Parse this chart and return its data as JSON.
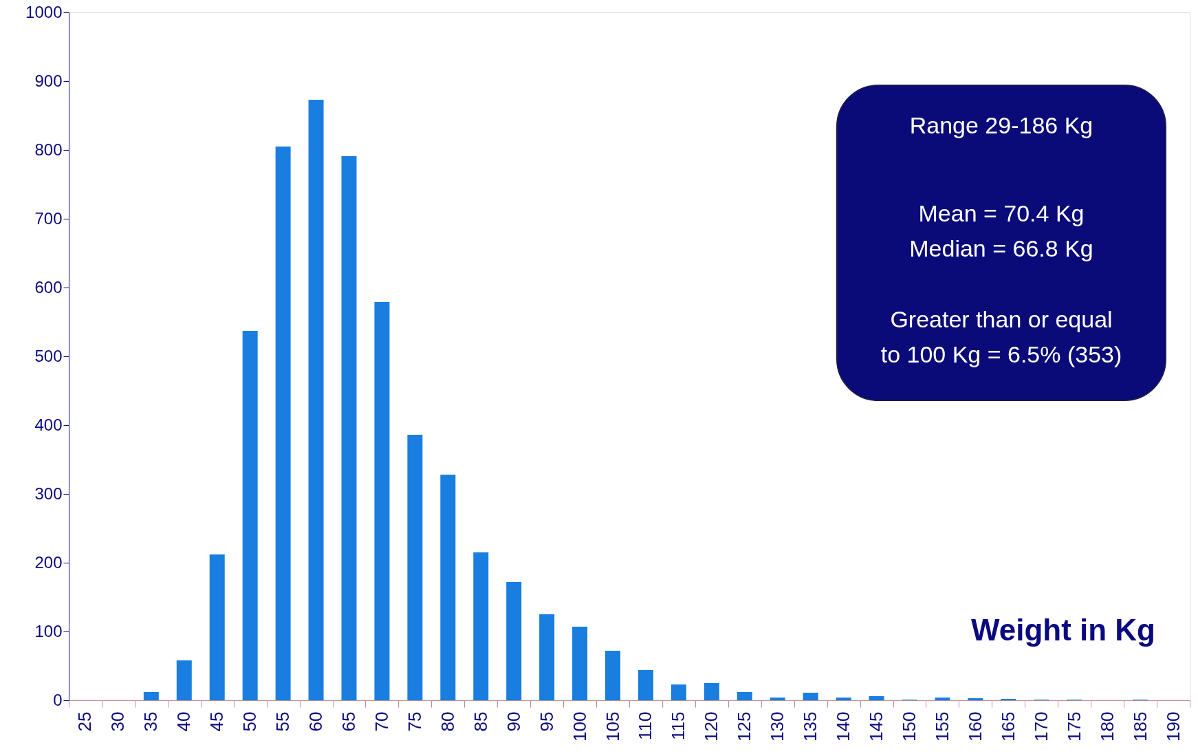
{
  "chart_data": {
    "type": "bar",
    "categories": [
      "25",
      "30",
      "35",
      "40",
      "45",
      "50",
      "55",
      "60",
      "65",
      "70",
      "75",
      "80",
      "85",
      "90",
      "95",
      "100",
      "105",
      "110",
      "115",
      "120",
      "125",
      "130",
      "135",
      "140",
      "145",
      "150",
      "155",
      "160",
      "165",
      "170",
      "175",
      "180",
      "185",
      "190"
    ],
    "values": [
      0,
      0,
      12,
      58,
      212,
      537,
      805,
      873,
      791,
      579,
      386,
      328,
      215,
      172,
      125,
      107,
      72,
      44,
      23,
      25,
      12,
      4,
      11,
      4,
      6,
      1,
      4,
      3,
      2,
      1,
      1,
      0,
      1,
      0
    ],
    "color": "#1a7ee0",
    "ylim": [
      0,
      1000
    ],
    "yticks": [
      0,
      100,
      200,
      300,
      400,
      500,
      600,
      700,
      800,
      900,
      1000
    ],
    "xlabel": "Weight in Kg",
    "annotations": [
      "Range 29-186 Kg",
      "Mean = 70.4 Kg\nMedian = 66.8 Kg",
      "Greater than or equal\nto 100 Kg = 6.5% (353)"
    ],
    "grid": false
  }
}
